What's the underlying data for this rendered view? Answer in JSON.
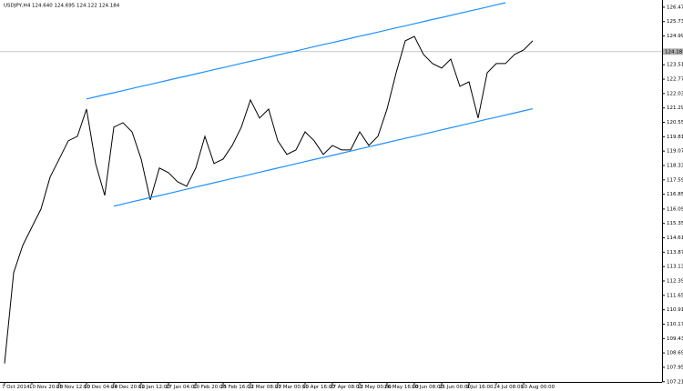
{
  "chart_data": {
    "type": "line",
    "title": "USDJPY,H4 124.640 124.695 124.122 124.184",
    "categories": [
      "7 Oct 2014",
      null,
      null,
      "10 Nov 20:00",
      null,
      null,
      "25 Nov 12:00",
      null,
      null,
      "10 Dec 04:00",
      null,
      null,
      "24 Dec 20:00",
      null,
      null,
      "12 Jan 12:00",
      null,
      null,
      "27 Jan 04:00",
      null,
      null,
      "10 Feb 20:00",
      null,
      null,
      "25 Feb 16:00",
      null,
      null,
      "12 Mar 08:00",
      null,
      null,
      "27 Mar 00:00",
      null,
      null,
      "10 Apr 16:00",
      null,
      null,
      "27 Apr 08:00",
      null,
      null,
      "12 May 00:00",
      null,
      null,
      "26 May 16:00",
      null,
      null,
      "10 Jun 08:00",
      null,
      null,
      "25 Jun 00:00",
      null,
      null,
      "9 Jul 16:00",
      null,
      null,
      "24 Jul 08:00",
      null,
      null,
      "10 Aug 00:00",
      null
    ],
    "series": [
      {
        "color": "#000000",
        "values": [
          108.15,
          112.82,
          114.22,
          115.16,
          116.09,
          117.73,
          118.66,
          119.6,
          119.83,
          121.23,
          118.43,
          116.79,
          120.3,
          120.53,
          120.06,
          118.66,
          116.56,
          118.2,
          117.96,
          117.49,
          117.26,
          118.2,
          119.83,
          118.43,
          118.66,
          119.36,
          120.3,
          121.7,
          120.77,
          121.23,
          119.6,
          118.9,
          119.13,
          120.06,
          119.6,
          118.9,
          119.36,
          119.13,
          119.13,
          120.06,
          119.36,
          119.83,
          121.23,
          123.1,
          124.74,
          124.97,
          124.04,
          123.57,
          123.34,
          123.8,
          122.4,
          122.63,
          120.77,
          123.1,
          123.57,
          123.57,
          124.04,
          124.27,
          124.74
        ]
      },
      {
        "color": "#1e90ff",
        "values": [
          null,
          null,
          null,
          null,
          null,
          null,
          null,
          null,
          null,
          121.75,
          121.86,
          121.97,
          122.07,
          122.18,
          122.29,
          122.4,
          122.5,
          122.61,
          122.72,
          122.83,
          122.93,
          123.04,
          123.15,
          123.26,
          123.36,
          123.47,
          123.58,
          123.69,
          123.79,
          123.9,
          124.01,
          124.12,
          124.22,
          124.33,
          124.44,
          124.55,
          124.65,
          124.76,
          124.87,
          124.98,
          125.08,
          125.19,
          125.3,
          125.41,
          125.51,
          125.62,
          125.73,
          125.84,
          125.94,
          126.05,
          126.16,
          126.27,
          126.37,
          126.48,
          126.59,
          126.7,
          null,
          null,
          null
        ]
      },
      {
        "color": "#1e90ff",
        "values": [
          null,
          null,
          null,
          null,
          null,
          null,
          null,
          null,
          null,
          null,
          null,
          null,
          116.24,
          116.35,
          116.46,
          116.57,
          116.68,
          116.78,
          116.89,
          117.0,
          117.11,
          117.22,
          117.33,
          117.44,
          117.55,
          117.66,
          117.76,
          117.87,
          117.98,
          118.09,
          118.2,
          118.31,
          118.42,
          118.53,
          118.64,
          118.74,
          118.85,
          118.96,
          119.07,
          119.18,
          119.29,
          119.4,
          119.51,
          119.62,
          119.73,
          119.83,
          119.94,
          120.05,
          120.16,
          120.27,
          120.38,
          120.49,
          120.6,
          120.71,
          120.81,
          120.92,
          121.03,
          121.14,
          121.25
        ]
      }
    ],
    "current_price": {
      "value": 124.184,
      "label": "124.18"
    },
    "ylim": [
      107.2,
      126.84
    ],
    "yticks": [
      126.47,
      125.73,
      124.99,
      123.51,
      122.77,
      122.03,
      121.29,
      120.55,
      119.81,
      119.07,
      118.33,
      117.59,
      116.85,
      116.09,
      115.35,
      114.61,
      113.87,
      113.13,
      112.39,
      111.65,
      110.91,
      110.17,
      109.43,
      108.69,
      107.95,
      107.21
    ]
  }
}
